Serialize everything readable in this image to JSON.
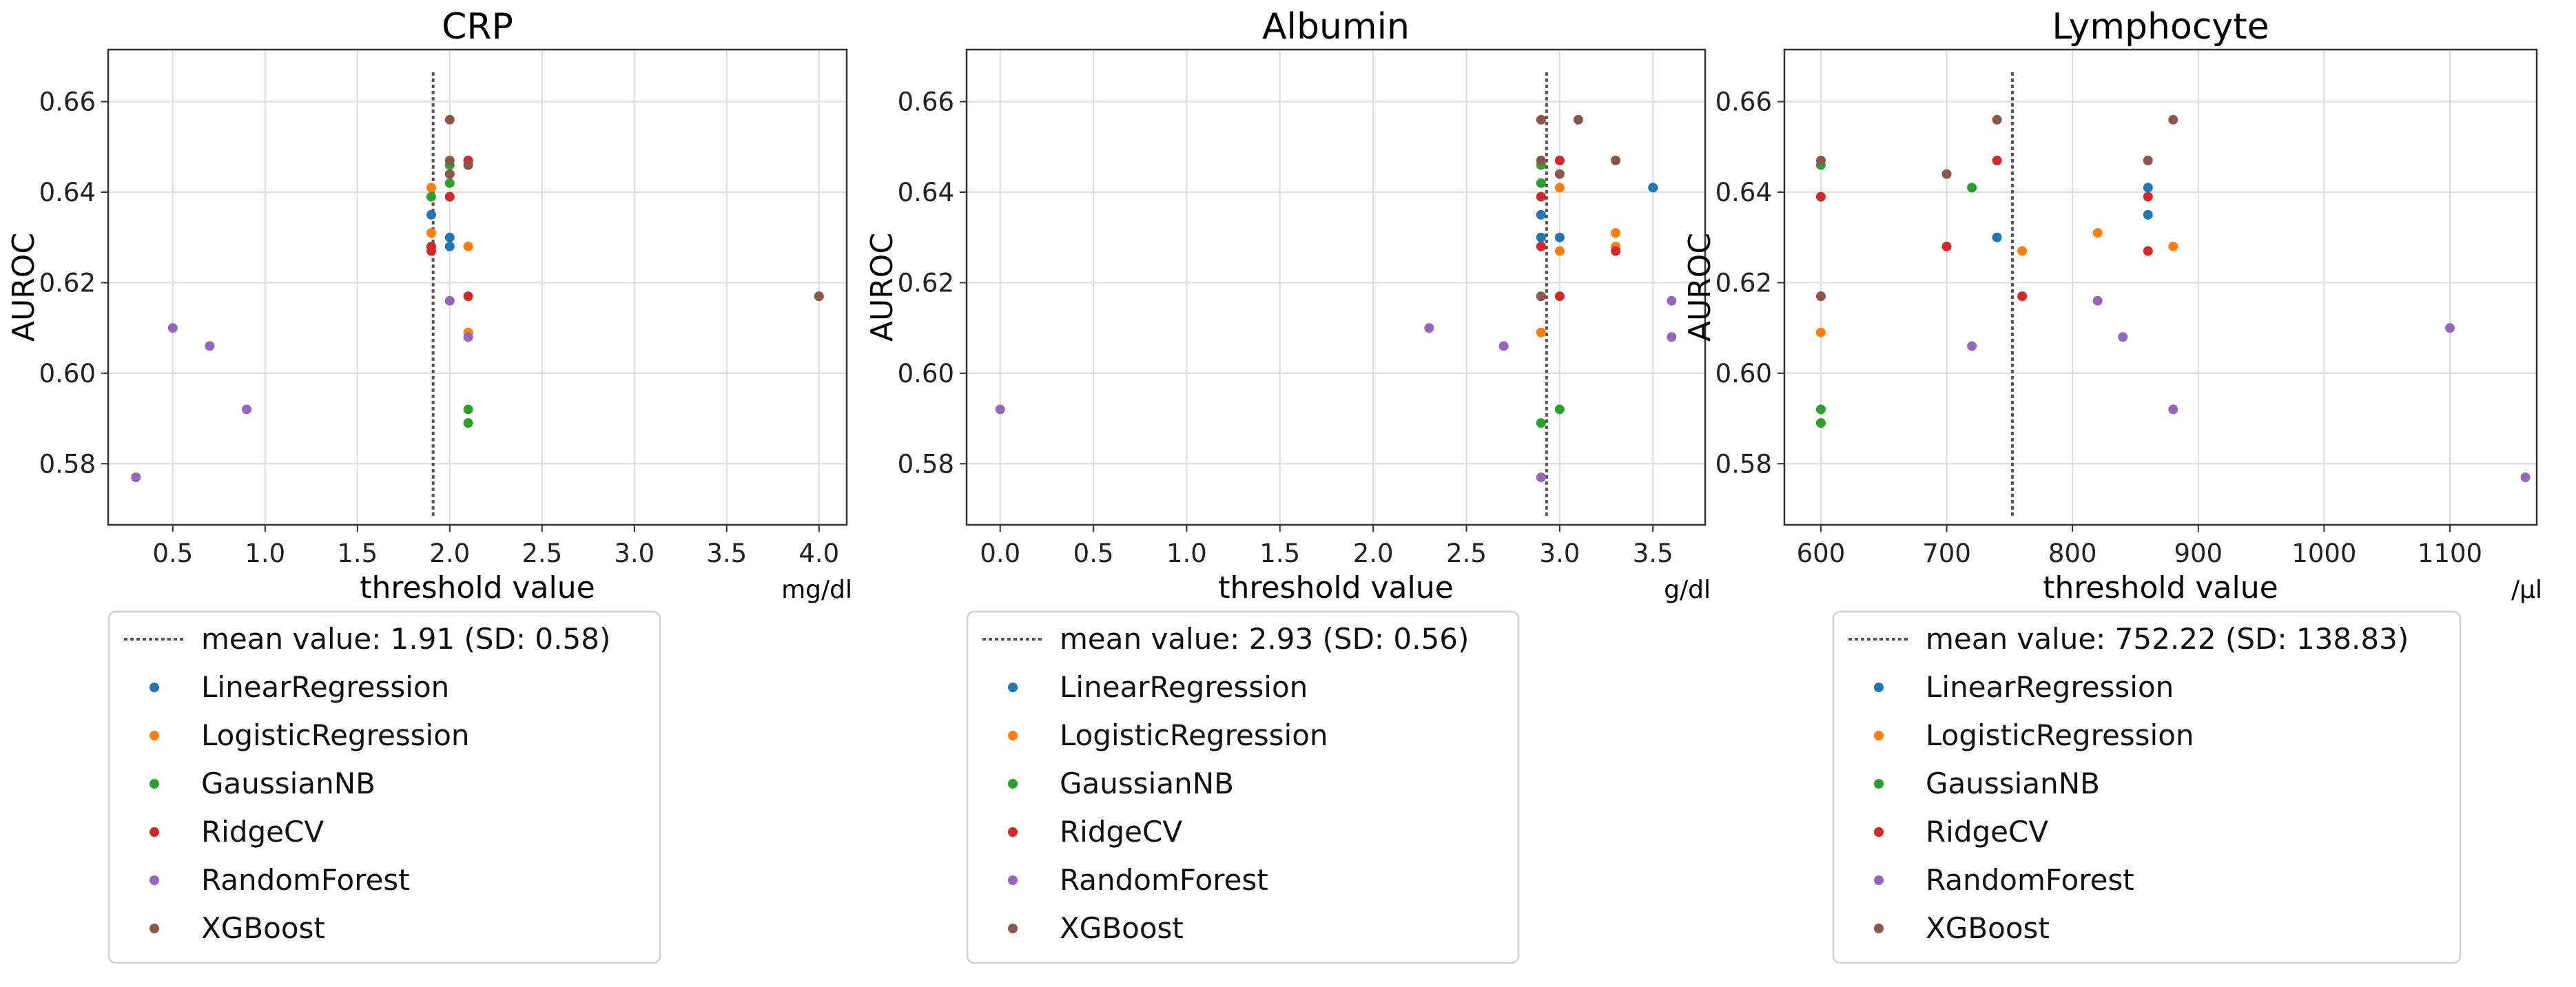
{
  "chart_data": [
    {
      "type": "scatter",
      "title": "CRP",
      "xlabel": "threshold value",
      "ylabel": "AUROC",
      "unit": "mg/dl",
      "xlim": [
        0.15,
        4.15
      ],
      "ylim": [
        0.5665,
        0.6715
      ],
      "xticks": [
        0.5,
        1.0,
        1.5,
        2.0,
        2.5,
        3.0,
        3.5,
        4.0
      ],
      "xtick_labels": [
        "0.5",
        "1.0",
        "1.5",
        "2.0",
        "2.5",
        "3.0",
        "3.5",
        "4.0"
      ],
      "yticks": [
        0.58,
        0.6,
        0.62,
        0.64,
        0.66
      ],
      "ytick_labels": [
        "0.58",
        "0.60",
        "0.62",
        "0.64",
        "0.66"
      ],
      "grid": true,
      "mean_line": {
        "value": 1.91,
        "label": "mean value: 1.91 (SD: 0.58)"
      },
      "series": [
        {
          "name": "LinearRegression",
          "color": "#1f77b4",
          "points": [
            [
              1.9,
              0.635
            ],
            [
              2.0,
              0.63
            ],
            [
              2.0,
              0.628
            ]
          ]
        },
        {
          "name": "LogisticRegression",
          "color": "#ff7f0e",
          "points": [
            [
              1.9,
              0.641
            ],
            [
              1.9,
              0.631
            ],
            [
              2.1,
              0.628
            ],
            [
              2.1,
              0.609
            ]
          ]
        },
        {
          "name": "GaussianNB",
          "color": "#2ca02c",
          "points": [
            [
              1.9,
              0.639
            ],
            [
              2.0,
              0.646
            ],
            [
              2.0,
              0.642
            ],
            [
              2.1,
              0.592
            ],
            [
              2.1,
              0.589
            ]
          ]
        },
        {
          "name": "RidgeCV",
          "color": "#d62728",
          "points": [
            [
              1.9,
              0.627
            ],
            [
              1.9,
              0.628
            ],
            [
              2.0,
              0.639
            ],
            [
              2.1,
              0.647
            ],
            [
              2.1,
              0.617
            ]
          ]
        },
        {
          "name": "RandomForest",
          "color": "#9467bd",
          "points": [
            [
              0.3,
              0.577
            ],
            [
              0.5,
              0.61
            ],
            [
              0.7,
              0.606
            ],
            [
              0.9,
              0.592
            ],
            [
              2.0,
              0.616
            ],
            [
              2.1,
              0.608
            ]
          ]
        },
        {
          "name": "XGBoost",
          "color": "#8c564b",
          "points": [
            [
              2.0,
              0.656
            ],
            [
              2.0,
              0.647
            ],
            [
              2.0,
              0.644
            ],
            [
              2.1,
              0.646
            ],
            [
              4.0,
              0.617
            ]
          ]
        }
      ]
    },
    {
      "type": "scatter",
      "title": "Albumin",
      "xlabel": "threshold value",
      "ylabel": "AUROC",
      "unit": "g/dl",
      "xlim": [
        -0.18,
        3.78
      ],
      "ylim": [
        0.5665,
        0.6715
      ],
      "xticks": [
        0.0,
        0.5,
        1.0,
        1.5,
        2.0,
        2.5,
        3.0,
        3.5
      ],
      "xtick_labels": [
        "0.0",
        "0.5",
        "1.0",
        "1.5",
        "2.0",
        "2.5",
        "3.0",
        "3.5"
      ],
      "yticks": [
        0.58,
        0.6,
        0.62,
        0.64,
        0.66
      ],
      "ytick_labels": [
        "0.58",
        "0.60",
        "0.62",
        "0.64",
        "0.66"
      ],
      "grid": true,
      "mean_line": {
        "value": 2.93,
        "label": "mean value: 2.93 (SD: 0.56)"
      },
      "series": [
        {
          "name": "LinearRegression",
          "color": "#1f77b4",
          "points": [
            [
              2.9,
              0.635
            ],
            [
              2.9,
              0.63
            ],
            [
              3.0,
              0.63
            ],
            [
              3.5,
              0.641
            ]
          ]
        },
        {
          "name": "LogisticRegression",
          "color": "#ff7f0e",
          "points": [
            [
              2.9,
              0.609
            ],
            [
              3.0,
              0.641
            ],
            [
              3.0,
              0.627
            ],
            [
              3.3,
              0.631
            ],
            [
              3.3,
              0.628
            ]
          ]
        },
        {
          "name": "GaussianNB",
          "color": "#2ca02c",
          "points": [
            [
              2.9,
              0.646
            ],
            [
              2.9,
              0.642
            ],
            [
              2.9,
              0.589
            ],
            [
              3.0,
              0.592
            ]
          ]
        },
        {
          "name": "RidgeCV",
          "color": "#d62728",
          "points": [
            [
              2.9,
              0.639
            ],
            [
              2.9,
              0.628
            ],
            [
              3.0,
              0.647
            ],
            [
              3.0,
              0.617
            ],
            [
              3.3,
              0.627
            ]
          ]
        },
        {
          "name": "RandomForest",
          "color": "#9467bd",
          "points": [
            [
              0.0,
              0.592
            ],
            [
              2.3,
              0.61
            ],
            [
              2.7,
              0.606
            ],
            [
              2.9,
              0.577
            ],
            [
              3.6,
              0.616
            ],
            [
              3.6,
              0.608
            ]
          ]
        },
        {
          "name": "XGBoost",
          "color": "#8c564b",
          "points": [
            [
              2.9,
              0.656
            ],
            [
              2.9,
              0.647
            ],
            [
              2.9,
              0.617
            ],
            [
              3.0,
              0.644
            ],
            [
              3.1,
              0.656
            ],
            [
              3.3,
              0.647
            ]
          ]
        }
      ]
    },
    {
      "type": "scatter",
      "title": "Lymphocyte",
      "xlabel": "threshold value",
      "ylabel": "AUROC",
      "unit": "/μl",
      "xlim": [
        571,
        1169
      ],
      "ylim": [
        0.5665,
        0.6715
      ],
      "xticks": [
        600,
        700,
        800,
        900,
        1000,
        1100
      ],
      "xtick_labels": [
        "600",
        "700",
        "800",
        "900",
        "1000",
        "1100"
      ],
      "yticks": [
        0.58,
        0.6,
        0.62,
        0.64,
        0.66
      ],
      "ytick_labels": [
        "0.58",
        "0.60",
        "0.62",
        "0.64",
        "0.66"
      ],
      "grid": true,
      "mean_line": {
        "value": 752.22,
        "label": "mean value: 752.22 (SD: 138.83)"
      },
      "series": [
        {
          "name": "LinearRegression",
          "color": "#1f77b4",
          "points": [
            [
              740,
              0.63
            ],
            [
              860,
              0.641
            ],
            [
              860,
              0.635
            ]
          ]
        },
        {
          "name": "LogisticRegression",
          "color": "#ff7f0e",
          "points": [
            [
              600,
              0.609
            ],
            [
              760,
              0.627
            ],
            [
              820,
              0.631
            ],
            [
              880,
              0.628
            ]
          ]
        },
        {
          "name": "GaussianNB",
          "color": "#2ca02c",
          "points": [
            [
              600,
              0.646
            ],
            [
              600,
              0.592
            ],
            [
              600,
              0.589
            ],
            [
              720,
              0.641
            ]
          ]
        },
        {
          "name": "RidgeCV",
          "color": "#d62728",
          "points": [
            [
              600,
              0.639
            ],
            [
              700,
              0.628
            ],
            [
              740,
              0.647
            ],
            [
              760,
              0.617
            ],
            [
              860,
              0.627
            ],
            [
              860,
              0.639
            ]
          ]
        },
        {
          "name": "RandomForest",
          "color": "#9467bd",
          "points": [
            [
              720,
              0.606
            ],
            [
              820,
              0.616
            ],
            [
              840,
              0.608
            ],
            [
              880,
              0.592
            ],
            [
              1100,
              0.61
            ],
            [
              1160,
              0.577
            ]
          ]
        },
        {
          "name": "XGBoost",
          "color": "#8c564b",
          "points": [
            [
              600,
              0.647
            ],
            [
              600,
              0.617
            ],
            [
              700,
              0.644
            ],
            [
              740,
              0.656
            ],
            [
              860,
              0.647
            ],
            [
              880,
              0.656
            ]
          ]
        }
      ]
    }
  ]
}
